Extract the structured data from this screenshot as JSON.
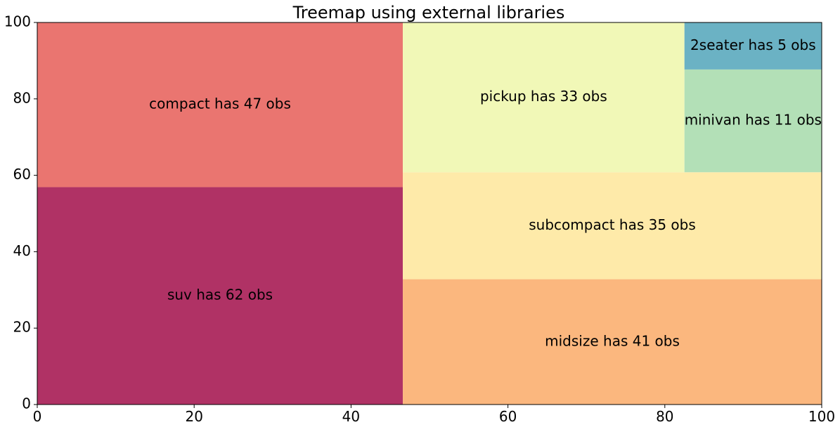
{
  "chart_data": {
    "type": "treemap",
    "title": "Treemap using external libraries",
    "xlim": [
      0,
      100
    ],
    "ylim": [
      0,
      100
    ],
    "x_ticks": [
      0,
      20,
      40,
      60,
      80,
      100
    ],
    "y_ticks": [
      0,
      20,
      40,
      60,
      80,
      100
    ],
    "grid": false,
    "cells": [
      {
        "name": "suv",
        "count": 62,
        "label": "suv has 62 obs",
        "x": 0,
        "y": 0,
        "dx": 46.6,
        "dy": 56.9,
        "color": "#b03265"
      },
      {
        "name": "compact",
        "count": 47,
        "label": "compact has 47 obs",
        "x": 0,
        "y": 56.9,
        "dx": 46.6,
        "dy": 43.1,
        "color": "#ea7570"
      },
      {
        "name": "midsize",
        "count": 41,
        "label": "midsize has 41 obs",
        "x": 46.6,
        "y": 0,
        "dx": 53.4,
        "dy": 32.8,
        "color": "#fbb77e"
      },
      {
        "name": "subcompact",
        "count": 35,
        "label": "subcompact has 35 obs",
        "x": 46.6,
        "y": 32.8,
        "dx": 53.4,
        "dy": 28.0,
        "color": "#feeaa9"
      },
      {
        "name": "pickup",
        "count": 33,
        "label": "pickup has 33 obs",
        "x": 46.6,
        "y": 60.8,
        "dx": 35.9,
        "dy": 39.2,
        "color": "#f1f8b7"
      },
      {
        "name": "minivan",
        "count": 11,
        "label": "minivan has 11 obs",
        "x": 82.5,
        "y": 60.8,
        "dx": 17.5,
        "dy": 26.9,
        "color": "#b3e0b7"
      },
      {
        "name": "2seater",
        "count": 5,
        "label": "2seater has 5 obs",
        "x": 82.5,
        "y": 87.7,
        "dx": 17.5,
        "dy": 12.3,
        "color": "#6bb2c4"
      }
    ]
  }
}
